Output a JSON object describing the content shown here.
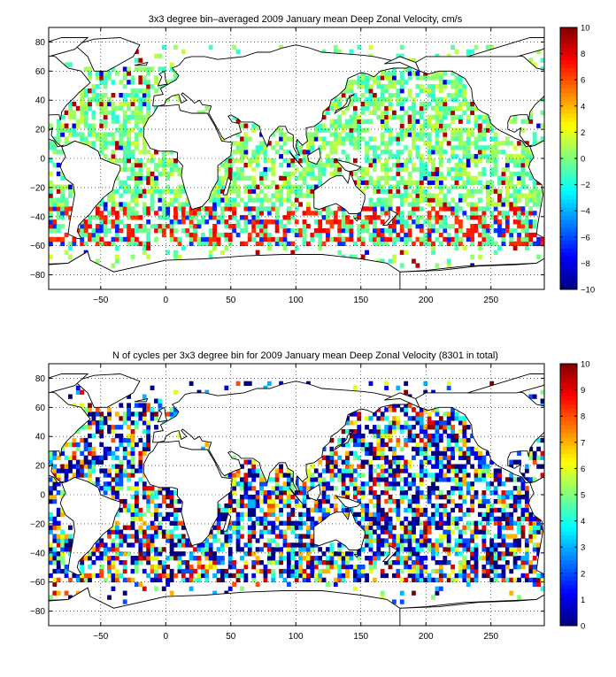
{
  "chart_data": [
    {
      "type": "heatmap",
      "title": "3x3 degree bin–averaged 2009 January mean Deep Zonal Velocity, cm/s",
      "xlabel": "",
      "ylabel": "",
      "xlim": [
        -90,
        291
      ],
      "ylim": [
        -90,
        90
      ],
      "xticks": [
        -50,
        0,
        50,
        100,
        150,
        200,
        250
      ],
      "xtick_labels": [
        "−50",
        "0",
        "50",
        "100",
        "150",
        "200",
        "250"
      ],
      "yticks": [
        80,
        60,
        40,
        20,
        0,
        -20,
        -40,
        -60,
        -80
      ],
      "ytick_labels": [
        "80",
        "60",
        "40",
        "20",
        "0",
        "−20",
        "−40",
        "−60",
        "−80"
      ],
      "colorbar": {
        "min": -10,
        "max": 10,
        "ticks": [
          10,
          8,
          6,
          4,
          2,
          0,
          -2,
          -4,
          -6,
          -8,
          -10
        ],
        "tick_labels": [
          "10",
          "8",
          "6",
          "4",
          "2",
          "0",
          "−2",
          "−4",
          "−6",
          "−8",
          "−10"
        ],
        "colormap": "jet"
      },
      "grid": true,
      "bin_size_deg": 3,
      "seed": 7
    },
    {
      "type": "heatmap",
      "title": "N of cycles per 3x3 degree bin for 2009 January mean Deep Zonal Velocity (8301 in total)",
      "xlabel": "",
      "ylabel": "",
      "xlim": [
        -90,
        291
      ],
      "ylim": [
        -90,
        90
      ],
      "xticks": [
        -50,
        0,
        50,
        100,
        150,
        200,
        250
      ],
      "xtick_labels": [
        "−50",
        "0",
        "50",
        "100",
        "150",
        "200",
        "250"
      ],
      "yticks": [
        80,
        60,
        40,
        20,
        0,
        -20,
        -40,
        -60,
        -80
      ],
      "ytick_labels": [
        "80",
        "60",
        "40",
        "20",
        "0",
        "−20",
        "−40",
        "−60",
        "−80"
      ],
      "colorbar": {
        "min": 0,
        "max": 10,
        "ticks": [
          10,
          9,
          8,
          7,
          6,
          5,
          4,
          3,
          2,
          1,
          0
        ],
        "tick_labels": [
          "10",
          "9",
          "8",
          "7",
          "6",
          "5",
          "4",
          "3",
          "2",
          "1",
          "0"
        ],
        "colormap": "jet"
      },
      "grid": true,
      "bin_size_deg": 3,
      "total": 8301,
      "seed": 19
    }
  ]
}
